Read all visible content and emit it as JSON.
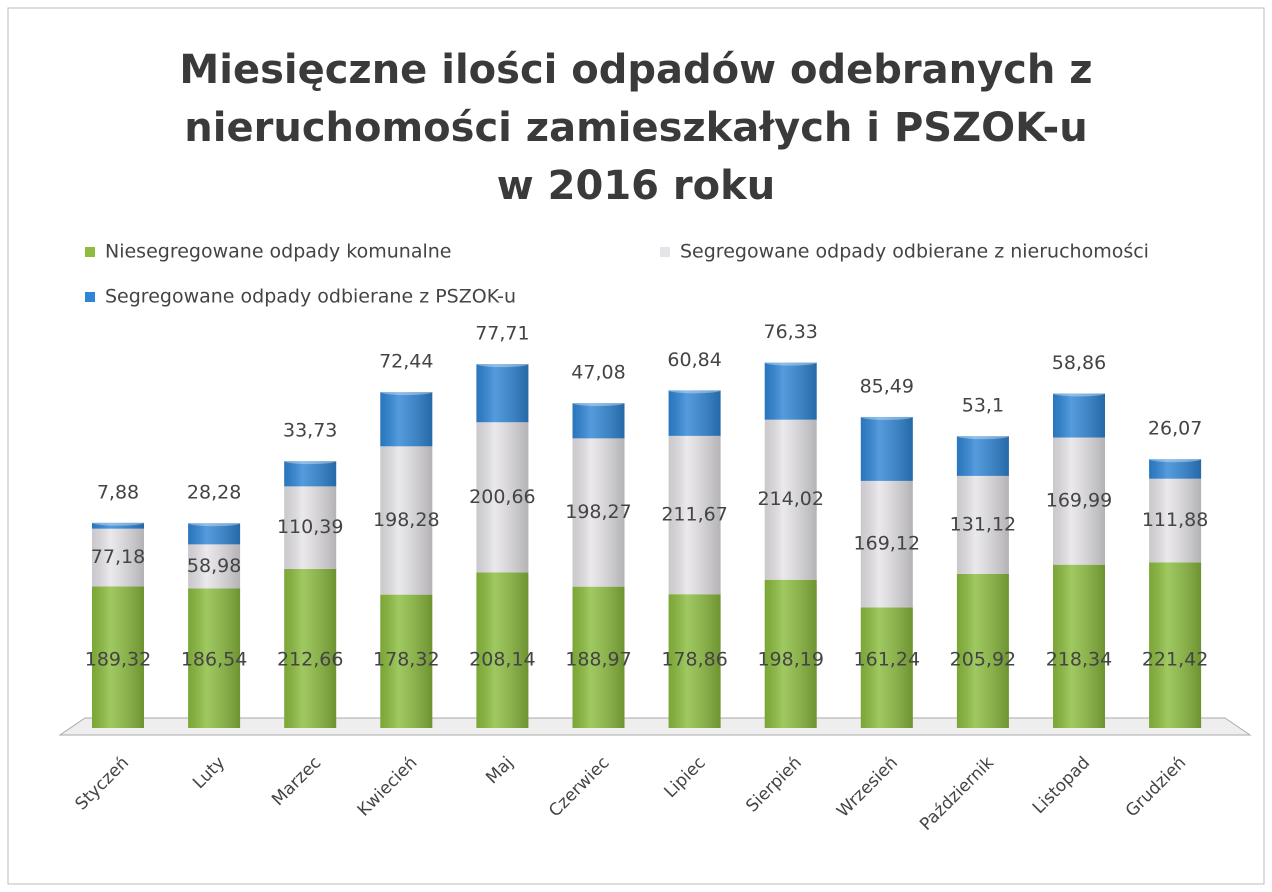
{
  "chart_data": {
    "type": "stacked_bar",
    "title": [
      "Miesięczne ilości odpadów odebranych z",
      "nieruchomości zamieszkałych i PSZOK-u",
      "w 2016 roku"
    ],
    "categories": [
      "Styczeń",
      "Luty",
      "Marzec",
      "Kwiecień",
      "Maj",
      "Czerwiec",
      "Lipiec",
      "Sierpień",
      "Wrzesień",
      "Październik",
      "Listopad",
      "Grudzień"
    ],
    "series": [
      {
        "name": "Niesegregowane odpady komunalne",
        "color": "#8cbd3f",
        "values": [
          189.32,
          186.54,
          212.66,
          178.32,
          208.14,
          188.97,
          178.86,
          198.19,
          161.24,
          205.92,
          218.34,
          221.42
        ],
        "value_labels": [
          "189,32",
          "186,54",
          "212,66",
          "178,32",
          "208,14",
          "188,97",
          "178,86",
          "198,19",
          "161,24",
          "205,92",
          "218,34",
          "221,42"
        ]
      },
      {
        "name": "Segregowane odpady odbierane z nieruchomości",
        "color": "#e6e4e8",
        "values": [
          77.18,
          58.98,
          110.39,
          198.28,
          200.66,
          198.27,
          211.67,
          214.02,
          169.12,
          131.12,
          169.99,
          111.88
        ],
        "value_labels": [
          "77,18",
          "58,98",
          "110,39",
          "198,28",
          "200,66",
          "198,27",
          "211,67",
          "214,02",
          "169,12",
          "131,12",
          "169,99",
          "111,88"
        ]
      },
      {
        "name": "Segregowane odpady odbierane z PSZOK-u",
        "color": "#2f86d6",
        "values": [
          7.88,
          28.28,
          33.73,
          72.44,
          77.71,
          47.08,
          60.84,
          76.33,
          85.49,
          53.1,
          58.86,
          26.07
        ],
        "value_labels": [
          "7,88",
          "28,28",
          "33,73",
          "72,44",
          "77,71",
          "47,08",
          "60,84",
          "76,33",
          "85,49",
          "53,1",
          "58,86",
          "26,07"
        ]
      }
    ]
  }
}
